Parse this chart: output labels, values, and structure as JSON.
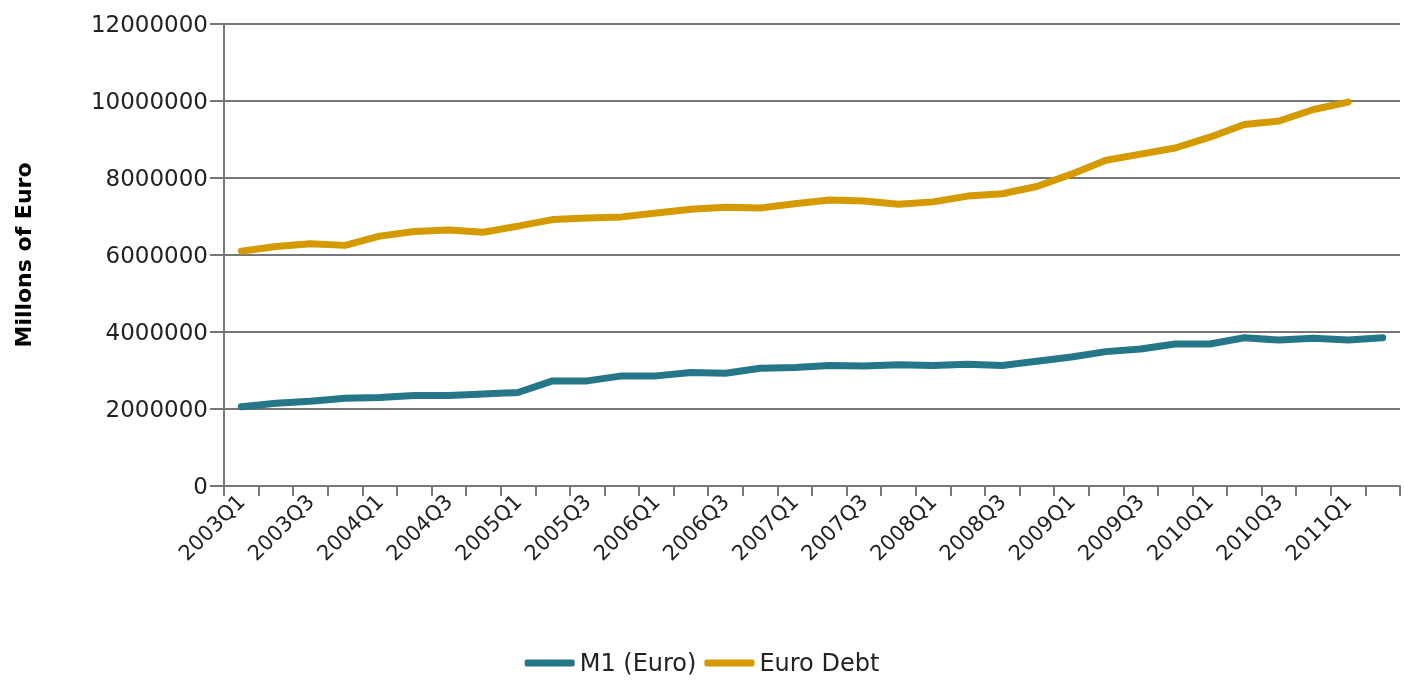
{
  "chart_data": {
    "type": "line",
    "ylabel": "Millons of Euro",
    "categories": [
      "2003Q1",
      null,
      "2003Q3",
      null,
      "2004Q1",
      null,
      "2004Q3",
      null,
      "2005Q1",
      null,
      "2005Q3",
      null,
      "2006Q1",
      null,
      "2006Q3",
      null,
      "2007Q1",
      null,
      "2007Q3",
      null,
      "2008Q1",
      null,
      "2008Q3",
      null,
      "2009Q1",
      null,
      "2009Q3",
      null,
      "2010Q1",
      null,
      "2010Q3",
      null,
      "2011Q1",
      null
    ],
    "series": [
      {
        "name": "M1 (Euro)",
        "color": "#26768a",
        "values": [
          2060000,
          2150000,
          2200000,
          2280000,
          2300000,
          2350000,
          2350000,
          2390000,
          2430000,
          2730000,
          2730000,
          2860000,
          2860000,
          2950000,
          2930000,
          3060000,
          3080000,
          3130000,
          3120000,
          3150000,
          3130000,
          3160000,
          3130000,
          3240000,
          3350000,
          3490000,
          3560000,
          3690000,
          3690000,
          3850000,
          3790000,
          3840000,
          3790000,
          3850000
        ]
      },
      {
        "name": "Euro Debt",
        "color": "#d49a00",
        "values": [
          6100000,
          6220000,
          6290000,
          6250000,
          6490000,
          6610000,
          6650000,
          6590000,
          6750000,
          6920000,
          6960000,
          6990000,
          7090000,
          7190000,
          7240000,
          7220000,
          7330000,
          7430000,
          7400000,
          7320000,
          7380000,
          7530000,
          7590000,
          7780000,
          8100000,
          8460000,
          8620000,
          8780000,
          9060000,
          9390000,
          9480000,
          9780000,
          9970000,
          null
        ]
      }
    ],
    "ylim": [
      0,
      12000000
    ],
    "yticks": [
      0,
      2000000,
      4000000,
      6000000,
      8000000,
      10000000,
      12000000
    ],
    "grid": "y",
    "legend": "bottom",
    "marker": "none",
    "line_style": "solid"
  }
}
